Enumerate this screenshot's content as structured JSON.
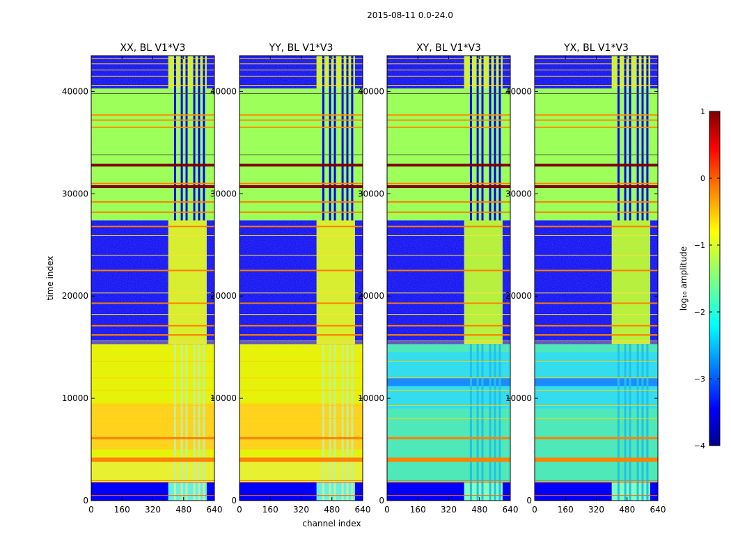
{
  "figure_title": "2015-08-11 0.0-24.0",
  "colors": {
    "dark_blue": "#00008f",
    "blue": "#0000ff",
    "cyan": "#00ffff",
    "green": "#7fff7f",
    "yellow": "#ffff00",
    "orange": "#ff7f00",
    "red": "#ff0000",
    "dark_red": "#7f0000",
    "flag_green": "#9cff5a"
  },
  "chart_data": [
    {
      "type": "heatmap",
      "title": "XX, BL V1*V3",
      "xlabel": "",
      "ylabel": "time index",
      "xlim": [
        0,
        640
      ],
      "ylim": [
        0,
        43500
      ],
      "xticks": [
        0,
        160,
        320,
        480,
        640
      ],
      "yticks": [
        0,
        10000,
        20000,
        30000,
        40000
      ],
      "variant": "parallel"
    },
    {
      "type": "heatmap",
      "title": "YY, BL V1*V3",
      "xlabel": "channel index",
      "ylabel": "",
      "xlim": [
        0,
        640
      ],
      "ylim": [
        0,
        43500
      ],
      "xticks": [
        0,
        160,
        320,
        480,
        640
      ],
      "yticks": [
        0,
        10000,
        20000,
        30000,
        40000
      ],
      "variant": "parallel"
    },
    {
      "type": "heatmap",
      "title": "XY, BL V1*V3",
      "xlabel": "",
      "ylabel": "",
      "xlim": [
        0,
        640
      ],
      "ylim": [
        0,
        43500
      ],
      "xticks": [
        0,
        160,
        320,
        480,
        640
      ],
      "yticks": [
        0,
        10000,
        20000,
        30000,
        40000
      ],
      "variant": "cross"
    },
    {
      "type": "heatmap",
      "title": "YX, BL V1*V3",
      "xlabel": "",
      "ylabel": "",
      "xlim": [
        0,
        640
      ],
      "ylim": [
        0,
        43500
      ],
      "xticks": [
        0,
        160,
        320,
        480,
        640
      ],
      "yticks": [
        0,
        10000,
        20000,
        30000,
        40000
      ],
      "variant": "cross"
    }
  ],
  "colorbar": {
    "label": "log₁₀ amplitude",
    "range": [
      -4,
      1
    ],
    "ticks": [
      "1",
      "0",
      "−1",
      "−2",
      "−3",
      "−4"
    ],
    "tick_values": [
      1,
      0,
      -1,
      -2,
      -3,
      -4
    ]
  }
}
